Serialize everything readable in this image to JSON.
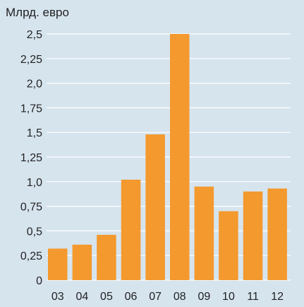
{
  "chart_data": {
    "type": "bar",
    "ylabel": "Млрд. евро",
    "categories": [
      "03",
      "04",
      "05",
      "06",
      "07",
      "08",
      "09",
      "10",
      "11",
      "12"
    ],
    "values": [
      0.32,
      0.36,
      0.46,
      1.02,
      1.48,
      2.5,
      0.95,
      0.7,
      0.9,
      0.93
    ],
    "y_ticks": [
      {
        "value": 0,
        "label": "0"
      },
      {
        "value": 0.25,
        "label": "0,25"
      },
      {
        "value": 0.5,
        "label": "0,5"
      },
      {
        "value": 0.75,
        "label": "0,75"
      },
      {
        "value": 1.0,
        "label": "1,0"
      },
      {
        "value": 1.25,
        "label": "1,25"
      },
      {
        "value": 1.5,
        "label": "1,5"
      },
      {
        "value": 1.75,
        "label": "1,75"
      },
      {
        "value": 2.0,
        "label": "2,0"
      },
      {
        "value": 2.25,
        "label": "2,25"
      },
      {
        "value": 2.5,
        "label": "2,5"
      }
    ],
    "ylim": [
      0,
      2.5
    ],
    "grid": true,
    "colors": {
      "background": "#d6e4ee",
      "bar": "#f3992e",
      "grid": "#ffffff",
      "text": "#222222"
    }
  }
}
